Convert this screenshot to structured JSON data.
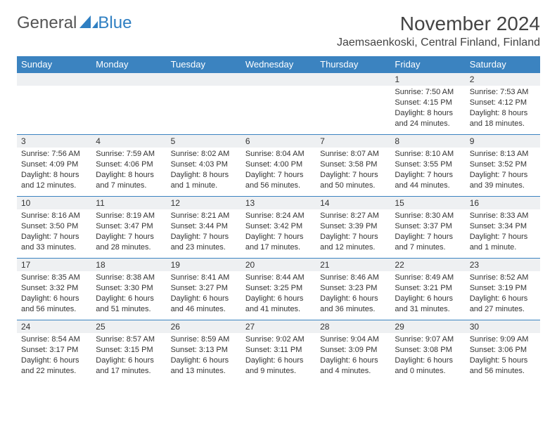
{
  "logo": {
    "word1": "General",
    "word2": "Blue"
  },
  "title": "November 2024",
  "location": "Jaemsaenkoski, Central Finland, Finland",
  "colors": {
    "header_bg": "#3b83c0",
    "header_text": "#ffffff",
    "daynum_bg": "#eef0f2",
    "cell_border": "#3b83c0",
    "logo_blue": "#2f7fc2",
    "text": "#333333"
  },
  "weekdays": [
    "Sunday",
    "Monday",
    "Tuesday",
    "Wednesday",
    "Thursday",
    "Friday",
    "Saturday"
  ],
  "weeks": [
    [
      null,
      null,
      null,
      null,
      null,
      {
        "n": "1",
        "sr": "7:50 AM",
        "ss": "4:15 PM",
        "dl": "8 hours and 24 minutes."
      },
      {
        "n": "2",
        "sr": "7:53 AM",
        "ss": "4:12 PM",
        "dl": "8 hours and 18 minutes."
      }
    ],
    [
      {
        "n": "3",
        "sr": "7:56 AM",
        "ss": "4:09 PM",
        "dl": "8 hours and 12 minutes."
      },
      {
        "n": "4",
        "sr": "7:59 AM",
        "ss": "4:06 PM",
        "dl": "8 hours and 7 minutes."
      },
      {
        "n": "5",
        "sr": "8:02 AM",
        "ss": "4:03 PM",
        "dl": "8 hours and 1 minute."
      },
      {
        "n": "6",
        "sr": "8:04 AM",
        "ss": "4:00 PM",
        "dl": "7 hours and 56 minutes."
      },
      {
        "n": "7",
        "sr": "8:07 AM",
        "ss": "3:58 PM",
        "dl": "7 hours and 50 minutes."
      },
      {
        "n": "8",
        "sr": "8:10 AM",
        "ss": "3:55 PM",
        "dl": "7 hours and 44 minutes."
      },
      {
        "n": "9",
        "sr": "8:13 AM",
        "ss": "3:52 PM",
        "dl": "7 hours and 39 minutes."
      }
    ],
    [
      {
        "n": "10",
        "sr": "8:16 AM",
        "ss": "3:50 PM",
        "dl": "7 hours and 33 minutes."
      },
      {
        "n": "11",
        "sr": "8:19 AM",
        "ss": "3:47 PM",
        "dl": "7 hours and 28 minutes."
      },
      {
        "n": "12",
        "sr": "8:21 AM",
        "ss": "3:44 PM",
        "dl": "7 hours and 23 minutes."
      },
      {
        "n": "13",
        "sr": "8:24 AM",
        "ss": "3:42 PM",
        "dl": "7 hours and 17 minutes."
      },
      {
        "n": "14",
        "sr": "8:27 AM",
        "ss": "3:39 PM",
        "dl": "7 hours and 12 minutes."
      },
      {
        "n": "15",
        "sr": "8:30 AM",
        "ss": "3:37 PM",
        "dl": "7 hours and 7 minutes."
      },
      {
        "n": "16",
        "sr": "8:33 AM",
        "ss": "3:34 PM",
        "dl": "7 hours and 1 minute."
      }
    ],
    [
      {
        "n": "17",
        "sr": "8:35 AM",
        "ss": "3:32 PM",
        "dl": "6 hours and 56 minutes."
      },
      {
        "n": "18",
        "sr": "8:38 AM",
        "ss": "3:30 PM",
        "dl": "6 hours and 51 minutes."
      },
      {
        "n": "19",
        "sr": "8:41 AM",
        "ss": "3:27 PM",
        "dl": "6 hours and 46 minutes."
      },
      {
        "n": "20",
        "sr": "8:44 AM",
        "ss": "3:25 PM",
        "dl": "6 hours and 41 minutes."
      },
      {
        "n": "21",
        "sr": "8:46 AM",
        "ss": "3:23 PM",
        "dl": "6 hours and 36 minutes."
      },
      {
        "n": "22",
        "sr": "8:49 AM",
        "ss": "3:21 PM",
        "dl": "6 hours and 31 minutes."
      },
      {
        "n": "23",
        "sr": "8:52 AM",
        "ss": "3:19 PM",
        "dl": "6 hours and 27 minutes."
      }
    ],
    [
      {
        "n": "24",
        "sr": "8:54 AM",
        "ss": "3:17 PM",
        "dl": "6 hours and 22 minutes."
      },
      {
        "n": "25",
        "sr": "8:57 AM",
        "ss": "3:15 PM",
        "dl": "6 hours and 17 minutes."
      },
      {
        "n": "26",
        "sr": "8:59 AM",
        "ss": "3:13 PM",
        "dl": "6 hours and 13 minutes."
      },
      {
        "n": "27",
        "sr": "9:02 AM",
        "ss": "3:11 PM",
        "dl": "6 hours and 9 minutes."
      },
      {
        "n": "28",
        "sr": "9:04 AM",
        "ss": "3:09 PM",
        "dl": "6 hours and 4 minutes."
      },
      {
        "n": "29",
        "sr": "9:07 AM",
        "ss": "3:08 PM",
        "dl": "6 hours and 0 minutes."
      },
      {
        "n": "30",
        "sr": "9:09 AM",
        "ss": "3:06 PM",
        "dl": "5 hours and 56 minutes."
      }
    ]
  ],
  "labels": {
    "sunrise": "Sunrise: ",
    "sunset": "Sunset: ",
    "daylight": "Daylight: "
  }
}
